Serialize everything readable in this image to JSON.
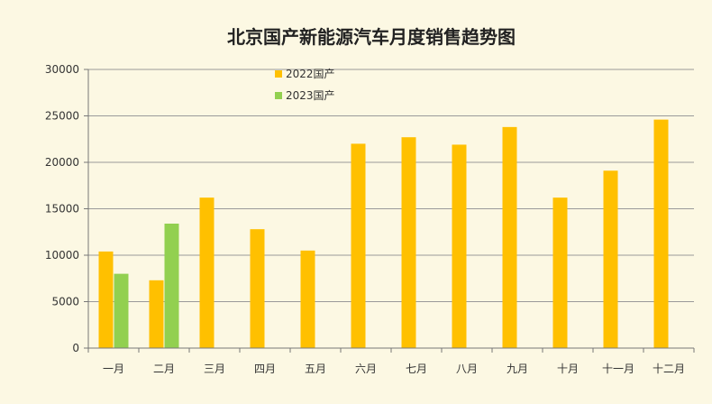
{
  "colors": {
    "background": "#fcf8e3",
    "gridline": "#9a9a9a",
    "axis": "#777777"
  },
  "chart_data": {
    "type": "bar",
    "title": "北京国产新能源汽车月度销售趋势图",
    "xlabel": "",
    "ylabel": "",
    "ylim": [
      0,
      30000
    ],
    "yticks": [
      0,
      5000,
      10000,
      15000,
      20000,
      25000,
      30000
    ],
    "grid": true,
    "legend_position": "top-center",
    "categories": [
      "一月",
      "二月",
      "三月",
      "四月",
      "五月",
      "六月",
      "七月",
      "八月",
      "九月",
      "十月",
      "十一月",
      "十二月"
    ],
    "series": [
      {
        "name": "2022国产",
        "color": "#ffc000",
        "values": [
          10400,
          7300,
          16200,
          12800,
          10500,
          22000,
          22700,
          21900,
          23800,
          16200,
          19100,
          24600
        ]
      },
      {
        "name": "2023国产",
        "color": "#92d050",
        "values": [
          8000,
          13400,
          null,
          null,
          null,
          null,
          null,
          null,
          null,
          null,
          null,
          null
        ]
      }
    ]
  }
}
